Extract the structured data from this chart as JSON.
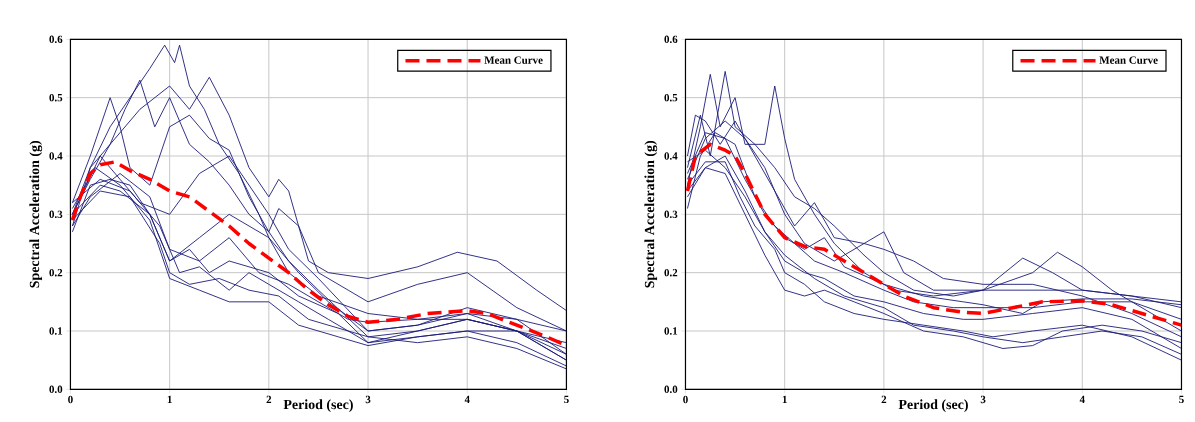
{
  "chart_data": [
    {
      "type": "line",
      "xlabel": "Period (sec)",
      "ylabel": "Spectral Acceleration (g)",
      "xlim": [
        0,
        5
      ],
      "ylim": [
        0,
        0.6
      ],
      "xticks": [
        0,
        1,
        2,
        3,
        4,
        5
      ],
      "yticks": [
        {
          "value": 0,
          "label": "0.0"
        },
        {
          "value": 0.1,
          "label": "0.1"
        },
        {
          "value": 0.2,
          "label": "0.2"
        },
        {
          "value": 0.3,
          "label": "0.3"
        },
        {
          "value": 0.4,
          "label": "0.4"
        },
        {
          "value": 0.5,
          "label": "0.5"
        },
        {
          "value": 0.6,
          "label": "0.6"
        }
      ],
      "grid": true,
      "legend": "top right",
      "marker": "none",
      "series": [
        {
          "color": "#1c1c7a",
          "x": [
            0.02,
            0.2,
            0.4,
            0.6,
            0.8,
            0.95,
            1.05,
            1.1,
            1.2,
            1.35,
            1.5,
            1.7,
            1.9,
            2.0,
            2.2,
            2.5,
            3.0,
            3.5,
            4.0,
            4.5,
            5.0
          ],
          "values": [
            0.3,
            0.38,
            0.45,
            0.5,
            0.55,
            0.59,
            0.56,
            0.59,
            0.52,
            0.48,
            0.42,
            0.37,
            0.3,
            0.26,
            0.2,
            0.16,
            0.13,
            0.12,
            0.12,
            0.1,
            0.07
          ]
        },
        {
          "color": "#1c1c7a",
          "x": [
            0.02,
            0.2,
            0.4,
            0.7,
            1.0,
            1.2,
            1.4,
            1.6,
            1.8,
            2.0,
            2.1,
            2.2,
            2.4,
            2.6,
            3.0,
            3.5,
            3.9,
            4.3,
            4.7,
            5.0
          ],
          "values": [
            0.3,
            0.36,
            0.42,
            0.48,
            0.52,
            0.48,
            0.535,
            0.47,
            0.38,
            0.33,
            0.36,
            0.34,
            0.22,
            0.2,
            0.19,
            0.21,
            0.235,
            0.22,
            0.17,
            0.135
          ]
        },
        {
          "color": "#1c1c7a",
          "x": [
            0.02,
            0.2,
            0.4,
            0.55,
            0.7,
            0.85,
            1.0,
            1.2,
            1.4,
            1.6,
            1.8,
            2.0,
            2.1,
            2.3,
            2.5,
            2.8,
            3.0,
            3.5,
            4.0,
            4.5,
            5.0
          ],
          "values": [
            0.28,
            0.38,
            0.42,
            0.48,
            0.53,
            0.45,
            0.5,
            0.42,
            0.39,
            0.35,
            0.3,
            0.27,
            0.31,
            0.28,
            0.2,
            0.17,
            0.15,
            0.18,
            0.2,
            0.14,
            0.1
          ]
        },
        {
          "color": "#1c1c7a",
          "x": [
            0.02,
            0.2,
            0.4,
            0.5,
            0.6,
            0.8,
            1.0,
            1.2,
            1.4,
            1.6,
            1.8,
            2.0,
            2.2,
            2.5,
            3.0,
            3.5,
            4.0,
            4.5,
            5.0
          ],
          "values": [
            0.32,
            0.4,
            0.5,
            0.45,
            0.38,
            0.35,
            0.45,
            0.47,
            0.43,
            0.41,
            0.33,
            0.27,
            0.22,
            0.17,
            0.09,
            0.1,
            0.12,
            0.1,
            0.06
          ]
        },
        {
          "color": "#1c1c7a",
          "x": [
            0.02,
            0.3,
            0.5,
            0.7,
            1.0,
            1.3,
            1.6,
            1.8,
            2.0,
            2.2,
            2.5,
            3.0,
            3.5,
            4.0,
            4.5,
            5.0
          ],
          "values": [
            0.3,
            0.4,
            0.36,
            0.32,
            0.3,
            0.37,
            0.4,
            0.35,
            0.3,
            0.24,
            0.19,
            0.1,
            0.11,
            0.14,
            0.12,
            0.06
          ]
        },
        {
          "color": "#1c1c7a",
          "x": [
            0.02,
            0.2,
            0.4,
            0.6,
            0.8,
            1.0,
            1.3,
            1.6,
            2.0,
            2.3,
            2.6,
            3.0,
            3.5,
            4.0,
            4.5,
            5.0
          ],
          "values": [
            0.27,
            0.35,
            0.36,
            0.35,
            0.3,
            0.22,
            0.26,
            0.3,
            0.26,
            0.2,
            0.15,
            0.1,
            0.11,
            0.13,
            0.1,
            0.05
          ]
        },
        {
          "color": "#1c1c7a",
          "x": [
            0.02,
            0.3,
            0.5,
            0.8,
            1.0,
            1.2,
            1.4,
            1.6,
            2.0,
            2.3,
            2.7,
            3.0,
            3.5,
            4.0,
            4.5,
            5.0
          ],
          "values": [
            0.3,
            0.35,
            0.34,
            0.3,
            0.22,
            0.24,
            0.2,
            0.22,
            0.2,
            0.16,
            0.13,
            0.08,
            0.1,
            0.12,
            0.1,
            0.05
          ]
        },
        {
          "color": "#1c1c7a",
          "x": [
            0.02,
            0.3,
            0.6,
            0.9,
            1.1,
            1.3,
            1.6,
            1.8,
            2.0,
            2.3,
            2.6,
            3.0,
            3.5,
            4.0,
            4.5,
            5.0
          ],
          "values": [
            0.32,
            0.36,
            0.34,
            0.28,
            0.2,
            0.21,
            0.17,
            0.2,
            0.18,
            0.15,
            0.12,
            0.08,
            0.09,
            0.1,
            0.08,
            0.04
          ]
        },
        {
          "color": "#1c1c7a",
          "x": [
            0.02,
            0.3,
            0.6,
            0.9,
            1.0,
            1.2,
            1.5,
            1.8,
            2.1,
            2.4,
            2.8,
            3.0,
            3.5,
            4.0,
            4.5,
            5.0
          ],
          "values": [
            0.29,
            0.34,
            0.33,
            0.25,
            0.2,
            0.18,
            0.19,
            0.17,
            0.16,
            0.12,
            0.1,
            0.09,
            0.08,
            0.09,
            0.07,
            0.035
          ]
        },
        {
          "color": "#1c1c7a",
          "x": [
            0.02,
            0.25,
            0.5,
            0.8,
            1.0,
            1.3,
            1.6,
            2.0,
            2.3,
            2.7,
            3.0,
            3.5,
            4.0,
            4.5,
            5.0
          ],
          "values": [
            0.31,
            0.38,
            0.35,
            0.29,
            0.19,
            0.17,
            0.15,
            0.15,
            0.11,
            0.09,
            0.075,
            0.09,
            0.1,
            0.1,
            0.08
          ]
        },
        {
          "color": "#1c1c7a",
          "x": [
            0.02,
            0.2,
            0.5,
            0.8,
            1.0,
            1.3,
            1.6,
            1.9,
            2.2,
            2.5,
            2.8,
            3.0,
            3.5,
            4.0,
            4.5,
            5.0
          ],
          "values": [
            0.28,
            0.33,
            0.37,
            0.33,
            0.24,
            0.22,
            0.26,
            0.2,
            0.18,
            0.15,
            0.12,
            0.115,
            0.12,
            0.13,
            0.12,
            0.1
          ]
        },
        {
          "name": "Mean Curve",
          "color": "#ff0000",
          "line_style": "dashed",
          "x": [
            0.02,
            0.1,
            0.2,
            0.3,
            0.45,
            0.6,
            0.8,
            1.0,
            1.2,
            1.4,
            1.6,
            1.8,
            2.0,
            2.2,
            2.4,
            2.6,
            2.8,
            3.0,
            3.3,
            3.6,
            4.0,
            4.2,
            4.5,
            4.8,
            5.0
          ],
          "values": [
            0.29,
            0.33,
            0.37,
            0.385,
            0.39,
            0.375,
            0.36,
            0.34,
            0.33,
            0.305,
            0.28,
            0.25,
            0.225,
            0.2,
            0.17,
            0.145,
            0.125,
            0.115,
            0.12,
            0.13,
            0.135,
            0.13,
            0.11,
            0.09,
            0.075
          ]
        }
      ]
    },
    {
      "type": "line",
      "xlabel": "Period (sec)",
      "ylabel": "Spectral Acceleration (g)",
      "xlim": [
        0,
        5
      ],
      "ylim": [
        0,
        0.6
      ],
      "xticks": [
        0,
        1,
        2,
        3,
        4,
        5
      ],
      "yticks": [
        {
          "value": 0,
          "label": "0.0"
        },
        {
          "value": 0.1,
          "label": "0.1"
        },
        {
          "value": 0.2,
          "label": "0.2"
        },
        {
          "value": 0.3,
          "label": "0.3"
        },
        {
          "value": 0.4,
          "label": "0.4"
        },
        {
          "value": 0.5,
          "label": "0.5"
        },
        {
          "value": 0.6,
          "label": "0.6"
        }
      ],
      "grid": true,
      "legend": "top right",
      "marker": "none",
      "series": [
        {
          "color": "#1c1c7a",
          "x": [
            0.02,
            0.15,
            0.25,
            0.35,
            0.5,
            0.6,
            0.8,
            0.9,
            1.0,
            1.1,
            1.3,
            1.5,
            1.8,
            2.1,
            2.5,
            3.0,
            3.5,
            3.75,
            4.0,
            4.3,
            4.7,
            5.0
          ],
          "values": [
            0.35,
            0.45,
            0.54,
            0.45,
            0.5,
            0.42,
            0.42,
            0.52,
            0.43,
            0.36,
            0.3,
            0.25,
            0.2,
            0.17,
            0.16,
            0.17,
            0.2,
            0.235,
            0.21,
            0.17,
            0.13,
            0.1
          ]
        },
        {
          "color": "#1c1c7a",
          "x": [
            0.02,
            0.15,
            0.25,
            0.4,
            0.5,
            0.7,
            0.9,
            1.1,
            1.3,
            1.5,
            1.8,
            2.0,
            2.3,
            2.7,
            3.0,
            3.4,
            3.7,
            4.0,
            4.5,
            5.0
          ],
          "values": [
            0.38,
            0.47,
            0.4,
            0.545,
            0.45,
            0.42,
            0.38,
            0.33,
            0.31,
            0.28,
            0.23,
            0.2,
            0.17,
            0.16,
            0.17,
            0.225,
            0.2,
            0.17,
            0.16,
            0.15
          ]
        },
        {
          "color": "#1c1c7a",
          "x": [
            0.02,
            0.1,
            0.2,
            0.35,
            0.5,
            0.7,
            0.9,
            1.1,
            1.3,
            1.5,
            1.8,
            2.0,
            2.2,
            2.5,
            3.0,
            3.5,
            4.0,
            4.5,
            5.0
          ],
          "values": [
            0.4,
            0.47,
            0.46,
            0.42,
            0.46,
            0.4,
            0.34,
            0.28,
            0.32,
            0.26,
            0.25,
            0.27,
            0.2,
            0.17,
            0.17,
            0.17,
            0.17,
            0.16,
            0.14
          ]
        },
        {
          "color": "#1c1c7a",
          "x": [
            0.02,
            0.2,
            0.4,
            0.6,
            0.8,
            1.0,
            1.2,
            1.5,
            1.8,
            2.0,
            2.3,
            2.6,
            3.0,
            3.5,
            4.0,
            4.5,
            5.0
          ],
          "values": [
            0.36,
            0.43,
            0.46,
            0.43,
            0.38,
            0.3,
            0.25,
            0.22,
            0.25,
            0.24,
            0.22,
            0.19,
            0.18,
            0.18,
            0.16,
            0.13,
            0.09
          ]
        },
        {
          "color": "#1c1c7a",
          "x": [
            0.02,
            0.2,
            0.4,
            0.6,
            0.8,
            1.0,
            1.2,
            1.4,
            1.6,
            2.0,
            2.4,
            2.8,
            3.0,
            3.4,
            3.6,
            4.0,
            4.5,
            5.0
          ],
          "values": [
            0.37,
            0.44,
            0.43,
            0.36,
            0.3,
            0.26,
            0.24,
            0.26,
            0.21,
            0.18,
            0.16,
            0.15,
            0.145,
            0.13,
            0.15,
            0.155,
            0.155,
            0.145
          ]
        },
        {
          "color": "#1c1c7a",
          "x": [
            0.02,
            0.15,
            0.3,
            0.5,
            0.7,
            0.9,
            1.1,
            1.3,
            1.6,
            2.0,
            2.3,
            2.7,
            3.0,
            3.5,
            4.0,
            4.5,
            5.0
          ],
          "values": [
            0.31,
            0.4,
            0.44,
            0.42,
            0.33,
            0.28,
            0.25,
            0.22,
            0.2,
            0.17,
            0.15,
            0.14,
            0.14,
            0.14,
            0.15,
            0.15,
            0.12
          ]
        },
        {
          "color": "#1c1c7a",
          "x": [
            0.02,
            0.2,
            0.4,
            0.6,
            0.8,
            1.0,
            1.2,
            1.4,
            1.7,
            2.0,
            2.4,
            2.8,
            3.0,
            3.5,
            4.0,
            4.5,
            5.0
          ],
          "values": [
            0.39,
            0.41,
            0.38,
            0.33,
            0.27,
            0.22,
            0.2,
            0.19,
            0.16,
            0.15,
            0.13,
            0.12,
            0.12,
            0.13,
            0.14,
            0.12,
            0.07
          ]
        },
        {
          "color": "#1c1c7a",
          "x": [
            0.02,
            0.2,
            0.4,
            0.55,
            0.7,
            0.9,
            1.0,
            1.2,
            1.4,
            1.7,
            2.0,
            2.4,
            2.8,
            3.1,
            3.5,
            4.0,
            4.5,
            5.0
          ],
          "values": [
            0.35,
            0.39,
            0.39,
            0.33,
            0.28,
            0.24,
            0.2,
            0.18,
            0.15,
            0.13,
            0.12,
            0.11,
            0.1,
            0.09,
            0.1,
            0.11,
            0.09,
            0.05
          ]
        },
        {
          "color": "#1c1c7a",
          "x": [
            0.02,
            0.2,
            0.4,
            0.6,
            0.8,
            1.0,
            1.2,
            1.4,
            1.7,
            2.0,
            2.4,
            2.8,
            3.2,
            3.5,
            3.8,
            4.2,
            4.6,
            5.0
          ],
          "values": [
            0.33,
            0.38,
            0.37,
            0.3,
            0.23,
            0.17,
            0.16,
            0.17,
            0.15,
            0.13,
            0.1,
            0.09,
            0.07,
            0.075,
            0.1,
            0.11,
            0.1,
            0.08
          ]
        },
        {
          "color": "#1c1c7a",
          "x": [
            0.02,
            0.2,
            0.4,
            0.6,
            0.8,
            1.0,
            1.3,
            1.6,
            2.0,
            2.3,
            2.7,
            3.0,
            3.4,
            3.8,
            4.2,
            4.6,
            5.0
          ],
          "values": [
            0.34,
            0.38,
            0.4,
            0.34,
            0.27,
            0.23,
            0.19,
            0.16,
            0.14,
            0.11,
            0.1,
            0.09,
            0.08,
            0.09,
            0.1,
            0.09,
            0.06
          ]
        },
        {
          "name": "Mean Curve",
          "color": "#ff0000",
          "line_style": "dashed",
          "x": [
            0.02,
            0.1,
            0.25,
            0.4,
            0.5,
            0.6,
            0.8,
            1.0,
            1.2,
            1.4,
            1.6,
            1.8,
            2.0,
            2.2,
            2.5,
            2.8,
            3.0,
            3.3,
            3.6,
            4.0,
            4.3,
            4.6,
            5.0
          ],
          "values": [
            0.34,
            0.4,
            0.42,
            0.41,
            0.4,
            0.37,
            0.3,
            0.26,
            0.245,
            0.24,
            0.22,
            0.2,
            0.18,
            0.16,
            0.14,
            0.132,
            0.13,
            0.14,
            0.15,
            0.152,
            0.145,
            0.13,
            0.11
          ]
        }
      ]
    }
  ]
}
